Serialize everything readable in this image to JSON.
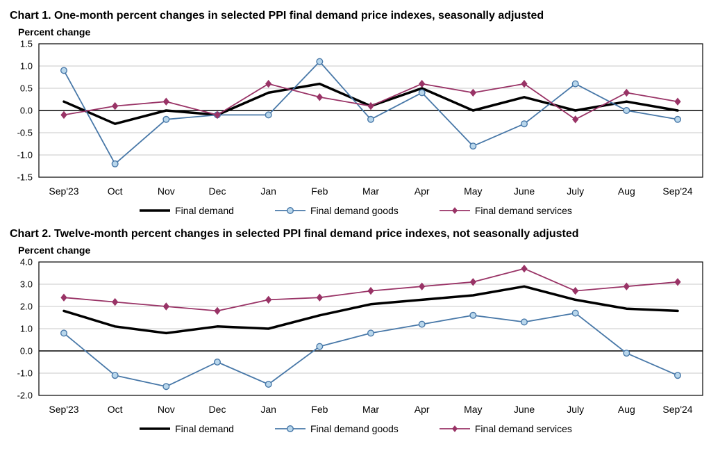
{
  "page": {
    "background_color": "#ffffff"
  },
  "chart_data": [
    {
      "type": "line",
      "title": "Chart 1. One-month percent changes in selected PPI final demand price indexes, seasonally adjusted",
      "ylabel": "Percent change",
      "xlabel": "",
      "ylim": [
        -1.5,
        1.5
      ],
      "yticks": [
        1.5,
        1.0,
        0.5,
        0.0,
        -0.5,
        -1.0,
        -1.5
      ],
      "grid": true,
      "legend_position": "bottom",
      "categories": [
        "Sep'23",
        "Oct",
        "Nov",
        "Dec",
        "Jan",
        "Feb",
        "Mar",
        "Apr",
        "May",
        "June",
        "July",
        "Aug",
        "Sep'24"
      ],
      "series": [
        {
          "name": "Final demand",
          "color": "#000000",
          "line_width": 3.5,
          "marker": "none",
          "marker_fill": "#000000",
          "values": [
            0.2,
            -0.3,
            0.0,
            -0.1,
            0.4,
            0.6,
            0.1,
            0.5,
            0.0,
            0.3,
            0.0,
            0.2,
            0.0
          ]
        },
        {
          "name": "Final demand goods",
          "color": "#4878a8",
          "line_width": 1.8,
          "marker": "circle",
          "marker_fill": "#b9d7ec",
          "values": [
            0.9,
            -1.2,
            -0.2,
            -0.1,
            -0.1,
            1.1,
            -0.2,
            0.4,
            -0.8,
            -0.3,
            0.6,
            0.0,
            -0.2
          ]
        },
        {
          "name": "Final demand services",
          "color": "#993366",
          "line_width": 1.8,
          "marker": "diamond",
          "marker_fill": "#993366",
          "values": [
            -0.1,
            0.1,
            0.2,
            -0.1,
            0.6,
            0.3,
            0.1,
            0.6,
            0.4,
            0.6,
            -0.2,
            0.4,
            0.2
          ]
        }
      ]
    },
    {
      "type": "line",
      "title": "Chart 2. Twelve-month percent changes in selected PPI final demand price indexes, not seasonally adjusted",
      "ylabel": "Percent change",
      "xlabel": "",
      "ylim": [
        -2.0,
        4.0
      ],
      "yticks": [
        4.0,
        3.0,
        2.0,
        1.0,
        0.0,
        -1.0,
        -2.0
      ],
      "grid": true,
      "legend_position": "bottom",
      "categories": [
        "Sep'23",
        "Oct",
        "Nov",
        "Dec",
        "Jan",
        "Feb",
        "Mar",
        "Apr",
        "May",
        "June",
        "July",
        "Aug",
        "Sep'24"
      ],
      "series": [
        {
          "name": "Final demand",
          "color": "#000000",
          "line_width": 3.5,
          "marker": "none",
          "marker_fill": "#000000",
          "values": [
            1.8,
            1.1,
            0.8,
            1.1,
            1.0,
            1.6,
            2.1,
            2.3,
            2.5,
            2.9,
            2.3,
            1.9,
            1.8
          ]
        },
        {
          "name": "Final demand goods",
          "color": "#4878a8",
          "line_width": 1.8,
          "marker": "circle",
          "marker_fill": "#b9d7ec",
          "values": [
            0.8,
            -1.1,
            -1.6,
            -0.5,
            -1.5,
            0.2,
            0.8,
            1.2,
            1.6,
            1.3,
            1.7,
            -0.1,
            -1.1
          ]
        },
        {
          "name": "Final demand services",
          "color": "#993366",
          "line_width": 1.8,
          "marker": "diamond",
          "marker_fill": "#993366",
          "values": [
            2.4,
            2.2,
            2.0,
            1.8,
            2.3,
            2.4,
            2.7,
            2.9,
            3.1,
            3.7,
            2.7,
            2.9,
            3.1
          ]
        }
      ]
    }
  ]
}
